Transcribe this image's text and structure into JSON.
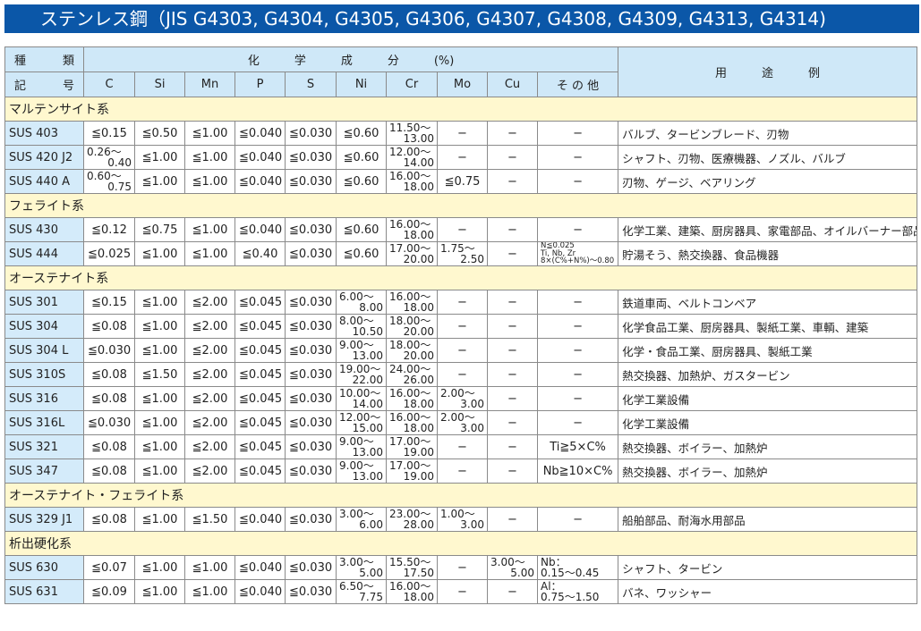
{
  "title": "ステンレス鋼（JIS G4303, G4304, G4305, G4306, G4307, G4308, G4309, G4313, G4314)",
  "header": {
    "kind": [
      "種",
      "類"
    ],
    "symbol": [
      "記",
      "号"
    ],
    "chem": "化　　　学　　　成　　　分　　　(%)",
    "cols": [
      "C",
      "Si",
      "Mn",
      "P",
      "S",
      "Ni",
      "Cr",
      "Mo",
      "Cu",
      "そ の 他"
    ],
    "use": "用　　　途　　　例"
  },
  "sections": [
    {
      "label": "マルテンサイト系",
      "rows": [
        {
          "name": "SUS 403",
          "cells": [
            "≦0.15",
            "≦0.50",
            "≦1.00",
            "≦0.040",
            "≦0.030",
            "≦0.60",
            [
              "11.50〜",
              "13.00"
            ],
            "−",
            "−",
            "−"
          ],
          "use": "バルブ、タービンブレード、刃物"
        },
        {
          "name": "SUS 420 J2",
          "cells": [
            [
              "0.26〜",
              "0.40"
            ],
            "≦1.00",
            "≦1.00",
            "≦0.040",
            "≦0.030",
            "≦0.60",
            [
              "12.00〜",
              "14.00"
            ],
            "−",
            "−",
            "−"
          ],
          "use": "シャフト、刃物、医療機器、ノズル、バルブ"
        },
        {
          "name": "SUS 440 A",
          "cells": [
            [
              "0.60〜",
              "0.75"
            ],
            "≦1.00",
            "≦1.00",
            "≦0.040",
            "≦0.030",
            "≦0.60",
            [
              "16.00〜",
              "18.00"
            ],
            "≦0.75",
            "−",
            "−"
          ],
          "use": "刃物、ゲージ、ベアリング"
        }
      ]
    },
    {
      "label": "フェライト系",
      "rows": [
        {
          "name": "SUS 430",
          "cells": [
            "≦0.12",
            "≦0.75",
            "≦1.00",
            "≦0.040",
            "≦0.030",
            "≦0.60",
            [
              "16.00〜",
              "18.00"
            ],
            "−",
            "−",
            "−"
          ],
          "use": "化学工業、建築、厨房器具、家電部品、オイルバーナー部品"
        },
        {
          "name": "SUS 444",
          "cells": [
            "≦0.025",
            "≦1.00",
            "≦1.00",
            "≦0.40",
            "≦0.030",
            "≦0.60",
            [
              "17.00〜",
              "20.00"
            ],
            [
              "1.75〜",
              "2.50"
            ],
            "−",
            {
              "lines": [
                "N≦0.025",
                "Ti, Nb, Zr",
                "8×(C%+N%)〜0.80"
              ],
              "small": true
            }
          ],
          "use": "貯湯そう、熱交換器、食品機器"
        }
      ]
    },
    {
      "label": "オーステナイト系",
      "rows": [
        {
          "name": "SUS 301",
          "cells": [
            "≦0.15",
            "≦1.00",
            "≦2.00",
            "≦0.045",
            "≦0.030",
            [
              "6.00〜",
              "8.00"
            ],
            [
              "16.00〜",
              "18.00"
            ],
            "−",
            "−",
            "−"
          ],
          "use": "鉄道車両、ベルトコンベア"
        },
        {
          "name": "SUS 304",
          "cells": [
            "≦0.08",
            "≦1.00",
            "≦2.00",
            "≦0.045",
            "≦0.030",
            [
              "8.00〜",
              "10.50"
            ],
            [
              "18.00〜",
              "20.00"
            ],
            "−",
            "−",
            "−"
          ],
          "use": "化学食品工業、厨房器具、製紙工業、車輌、建築"
        },
        {
          "name": "SUS 304 L",
          "cells": [
            "≦0.030",
            "≦1.00",
            "≦2.00",
            "≦0.045",
            "≦0.030",
            [
              "9.00〜",
              "13.00"
            ],
            [
              "18.00〜",
              "20.00"
            ],
            "−",
            "−",
            "−"
          ],
          "use": "化学・食品工業、厨房器具、製紙工業"
        },
        {
          "name": "SUS 310S",
          "cells": [
            "≦0.08",
            "≦1.50",
            "≦2.00",
            "≦0.045",
            "≦0.030",
            [
              "19.00〜",
              "22.00"
            ],
            [
              "24.00〜",
              "26.00"
            ],
            "−",
            "−",
            "−"
          ],
          "use": "熱交換器、加熱炉、ガスタービン"
        },
        {
          "name": "SUS 316",
          "cells": [
            "≦0.08",
            "≦1.00",
            "≦2.00",
            "≦0.045",
            "≦0.030",
            [
              "10.00〜",
              "14.00"
            ],
            [
              "16.00〜",
              "18.00"
            ],
            [
              "2.00〜",
              "3.00"
            ],
            "−",
            "−"
          ],
          "use": "化学工業設備"
        },
        {
          "name": "SUS 316L",
          "cells": [
            "≦0.030",
            "≦1.00",
            "≦2.00",
            "≦0.045",
            "≦0.030",
            [
              "12.00〜",
              "15.00"
            ],
            [
              "16.00〜",
              "18.00"
            ],
            [
              "2.00〜",
              "3.00"
            ],
            "−",
            "−"
          ],
          "use": "化学工業設備"
        },
        {
          "name": "SUS 321",
          "cells": [
            "≦0.08",
            "≦1.00",
            "≦2.00",
            "≦0.045",
            "≦0.030",
            [
              "9.00〜",
              "13.00"
            ],
            [
              "17.00〜",
              "19.00"
            ],
            "−",
            "−",
            "Ti≧5×C%"
          ],
          "use": "熱交換器、ボイラー、加熱炉"
        },
        {
          "name": "SUS 347",
          "cells": [
            "≦0.08",
            "≦1.00",
            "≦2.00",
            "≦0.045",
            "≦0.030",
            [
              "9.00〜",
              "13.00"
            ],
            [
              "17.00〜",
              "19.00"
            ],
            "−",
            "−",
            "Nb≧10×C%"
          ],
          "use": "熱交換器、ボイラー、加熱炉"
        }
      ]
    },
    {
      "label": "オーステナイト・フェライト系",
      "rows": [
        {
          "name": "SUS 329 J1",
          "cells": [
            "≦0.08",
            "≦1.00",
            "≦1.50",
            "≦0.040",
            "≦0.030",
            [
              "3.00〜",
              "6.00"
            ],
            [
              "23.00〜",
              "28.00"
            ],
            [
              "1.00〜",
              "3.00"
            ],
            "−",
            "−"
          ],
          "use": "船舶部品、耐海水用部品"
        }
      ]
    },
    {
      "label": "析出硬化系",
      "rows": [
        {
          "name": "SUS 630",
          "cells": [
            "≦0.07",
            "≦1.00",
            "≦1.00",
            "≦0.040",
            "≦0.030",
            [
              "3.00〜",
              "5.00"
            ],
            [
              "15.50〜",
              "17.50"
            ],
            "−",
            [
              "3.00〜",
              "5.00"
            ],
            {
              "lines": [
                "Nb：",
                "0.15〜0.45"
              ]
            }
          ],
          "use": "シャフト、タービン"
        },
        {
          "name": "SUS 631",
          "cells": [
            "≦0.09",
            "≦1.00",
            "≦1.00",
            "≦0.040",
            "≦0.030",
            [
              "6.50〜",
              "7.75"
            ],
            [
              "16.00〜",
              "18.00"
            ],
            "−",
            "−",
            {
              "lines": [
                "Al：",
                "0.75〜1.50"
              ]
            }
          ],
          "use": "バネ、ワッシャー"
        }
      ]
    }
  ],
  "colors": {
    "title_bg": "#0b57a8",
    "header_bg": "#cfe8f8",
    "section_bg": "#fff8cf",
    "name_bg": "#d4ebfa"
  }
}
